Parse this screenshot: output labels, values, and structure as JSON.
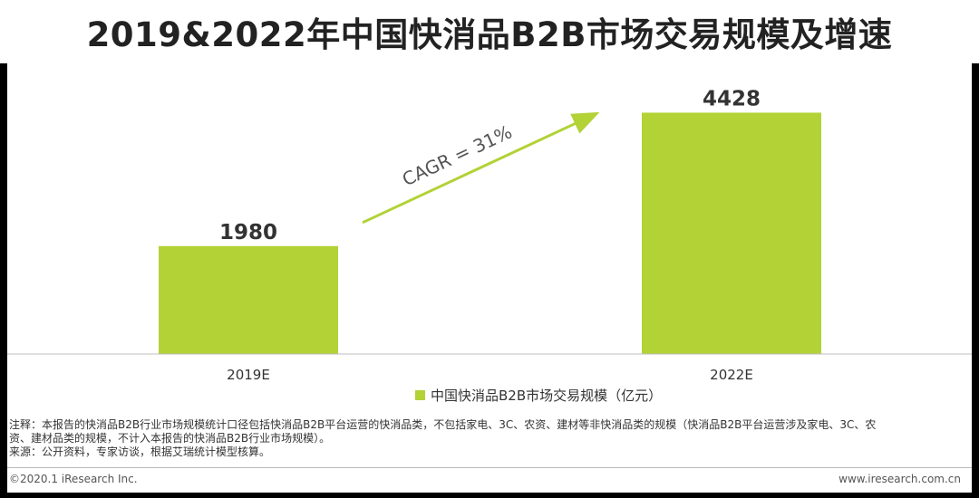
{
  "title": "2019&2022年中国快消品B2B市场交易规模及增速",
  "chart_data": {
    "type": "bar",
    "categories": [
      "2019E",
      "2022E"
    ],
    "series": [
      {
        "name": "中国快消品B2B市场交易规模（亿元）",
        "values": [
          1980,
          4428
        ],
        "color": "#b2d235"
      }
    ],
    "ylim": [
      0,
      5000
    ],
    "grid": false,
    "legend_position": "bottom-center",
    "annotation": "CAGR = 31%"
  },
  "note_lines": [
    "注释：本报告的快消品B2B行业市场规模统计口径包括快消品B2B平台运营的快消品类，不包括家电、3C、农资、建材等非快消品类的规模（快消品B2B平台运营涉及家电、3C、农",
    "资、建材品类的规模，不计入本报告的快消品B2B行业市场规模）。",
    "来源：公开资料，专家访谈，根据艾瑞统计模型核算。"
  ],
  "footer": {
    "copyright": "©2020.1 iResearch Inc.",
    "website": "www.iresearch.com.cn"
  }
}
